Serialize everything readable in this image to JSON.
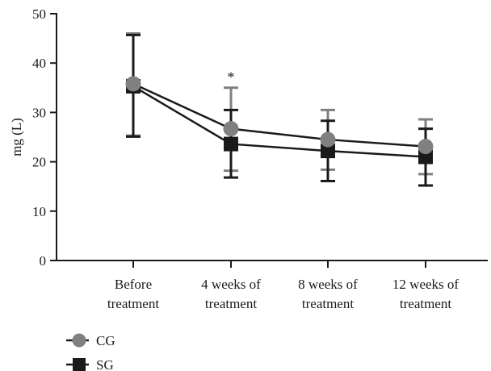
{
  "chart_data": {
    "type": "line",
    "ylabel": "mg (L)",
    "xlabel": "",
    "ylim": [
      0,
      50
    ],
    "yticks": [
      0,
      10,
      20,
      30,
      40,
      50
    ],
    "categories": [
      [
        "Before",
        "treatment"
      ],
      [
        "4 weeks of",
        "treatment"
      ],
      [
        "8 weeks of",
        "treatment"
      ],
      [
        "12 weeks of",
        "treatment"
      ]
    ],
    "series": [
      {
        "name": "CG",
        "marker": "circle",
        "color": "#808080",
        "values": [
          35.8,
          26.7,
          24.5,
          23.1
        ],
        "error_upper": [
          46.0,
          35.0,
          30.5,
          28.6
        ],
        "error_lower": [
          25.3,
          18.2,
          18.4,
          17.5
        ]
      },
      {
        "name": "SG",
        "marker": "square",
        "color": "#1a1a1a",
        "values": [
          35.3,
          23.6,
          22.2,
          21.0
        ],
        "error_upper": [
          45.7,
          30.5,
          28.3,
          26.7
        ],
        "error_lower": [
          25.1,
          16.8,
          16.1,
          15.2
        ]
      }
    ],
    "annotations": [
      {
        "text": "*",
        "category_index": 1,
        "y": 37.5
      }
    ],
    "grid": false,
    "legend_position": "bottom-left"
  }
}
